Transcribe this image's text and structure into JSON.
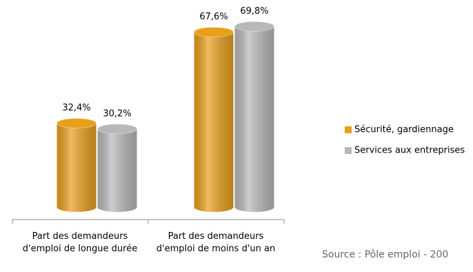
{
  "chart_data": {
    "type": "bar",
    "categories": [
      "Part des demandeurs d'emploi de longue durée",
      "Part des demandeurs d'emploi de moins d'un an"
    ],
    "series": [
      {
        "name": "Sécurité, gardiennage",
        "color": "#E89F1C",
        "values": [
          32.4,
          67.6
        ],
        "value_labels": [
          "32,4%",
          "67,6%"
        ]
      },
      {
        "name": "Services aux entreprises",
        "color": "#B8B8B8",
        "values": [
          30.2,
          69.8
        ],
        "value_labels": [
          "30,2%",
          "69,8%"
        ]
      }
    ],
    "source": "Source : Pôle emploi - 200"
  }
}
